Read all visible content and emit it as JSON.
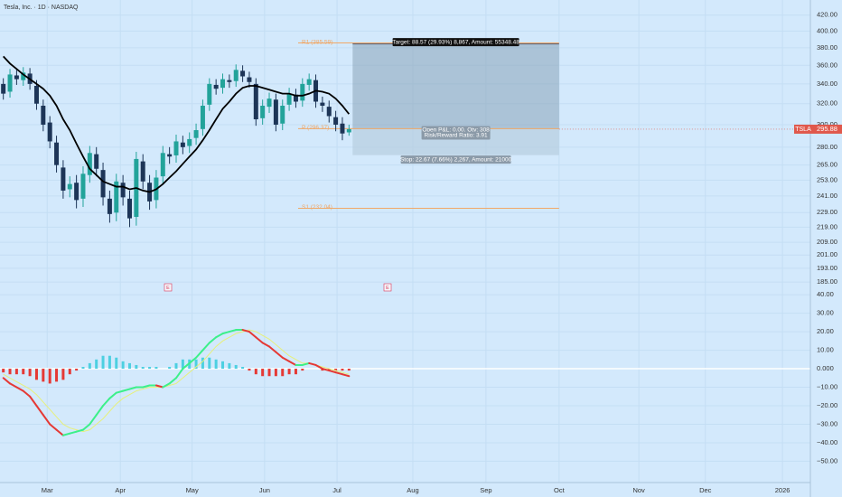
{
  "chart_data": {
    "type": "candlestick",
    "title": "Tesla, Inc. · 1D · NASDAQ",
    "symbol": "TSLA",
    "last_price": 295.88,
    "last_price_label": "295.88",
    "log_scale": true,
    "colors": {
      "up": "#22a39a",
      "down": "#1d3557",
      "ma": "#000000",
      "level": "#f0a868",
      "hist_up": "#4dd0e1",
      "hist_down": "#e53935",
      "macd_up": "#3cf08a",
      "macd_down": "#e53935",
      "signal": "#e7f07a",
      "price_tag": "#e0584c"
    },
    "xlim": [
      -0.5,
      121.4
    ],
    "xticks": [
      {
        "value": 6.6,
        "label": "Mar"
      },
      {
        "value": 17.6,
        "label": "Apr"
      },
      {
        "value": 28.4,
        "label": "May"
      },
      {
        "value": 39.3,
        "label": "Jun"
      },
      {
        "value": 50.2,
        "label": "Jul"
      },
      {
        "value": 61.6,
        "label": "Aug"
      },
      {
        "value": 72.6,
        "label": "Sep"
      },
      {
        "value": 83.6,
        "label": "Oct"
      },
      {
        "value": 95.6,
        "label": "Nov"
      },
      {
        "value": 105.6,
        "label": "Dec"
      },
      {
        "value": 117.2,
        "label": "2026"
      }
    ],
    "ylim": [
      181,
      440
    ],
    "yticks": [
      {
        "value": 420,
        "label": "420.00"
      },
      {
        "value": 400,
        "label": "400.00"
      },
      {
        "value": 380,
        "label": "380.00"
      },
      {
        "value": 360,
        "label": "360.00"
      },
      {
        "value": 340,
        "label": "340.00"
      },
      {
        "value": 320,
        "label": "320.00"
      },
      {
        "value": 300,
        "label": "300.00"
      },
      {
        "value": 280,
        "label": "280.00"
      },
      {
        "value": 265,
        "label": "265.00"
      },
      {
        "value": 253,
        "label": "253.00"
      },
      {
        "value": 241,
        "label": "241.00"
      },
      {
        "value": 229,
        "label": "229.00"
      },
      {
        "value": 219,
        "label": "219.00"
      },
      {
        "value": 209,
        "label": "209.00"
      },
      {
        "value": 201,
        "label": "201.00"
      },
      {
        "value": 193,
        "label": "193.00"
      },
      {
        "value": 185,
        "label": "185.00"
      }
    ],
    "open": [
      340,
      332,
      349,
      344,
      351,
      338,
      318,
      302,
      284,
      263,
      246,
      251,
      239,
      257,
      274,
      261,
      239,
      229,
      251,
      239,
      226,
      268,
      251,
      238,
      256,
      274,
      273,
      284,
      281,
      288,
      296,
      319,
      339,
      336,
      344,
      343,
      354,
      347,
      340,
      306,
      317,
      324,
      301,
      319,
      329,
      323,
      339,
      344,
      321,
      317,
      307,
      301,
      293
    ],
    "high": [
      346,
      356,
      355,
      358,
      357,
      344,
      324,
      308,
      290,
      269,
      256,
      257,
      264,
      281,
      280,
      267,
      245,
      258,
      257,
      245,
      276,
      274,
      257,
      261,
      281,
      280,
      291,
      290,
      293,
      301,
      324,
      346,
      345,
      351,
      350,
      361,
      360,
      353,
      346,
      324,
      331,
      330,
      324,
      336,
      335,
      346,
      351,
      350,
      327,
      323,
      313,
      307,
      300
    ],
    "low": [
      324,
      326,
      339,
      338,
      334,
      314,
      294,
      279,
      259,
      239,
      240,
      232,
      233,
      251,
      256,
      234,
      222,
      223,
      234,
      219,
      220,
      246,
      231,
      232,
      250,
      266,
      267,
      274,
      275,
      282,
      290,
      313,
      329,
      330,
      336,
      337,
      342,
      336,
      299,
      300,
      311,
      294,
      295,
      313,
      316,
      317,
      333,
      316,
      312,
      302,
      294,
      286,
      290
    ],
    "close": [
      330,
      350,
      345,
      352,
      340,
      320,
      300,
      285,
      265,
      245,
      250,
      238,
      258,
      275,
      262,
      240,
      228,
      252,
      240,
      225,
      270,
      252,
      237,
      255,
      275,
      272,
      285,
      280,
      287,
      295,
      318,
      340,
      335,
      345,
      342,
      355,
      348,
      342,
      305,
      318,
      325,
      300,
      318,
      330,
      322,
      340,
      345,
      322,
      318,
      308,
      300,
      292,
      295.88
    ],
    "ma": [
      370,
      362,
      356,
      350,
      345,
      340,
      335,
      328,
      318,
      305,
      295,
      283,
      272,
      262,
      257,
      252,
      250,
      248,
      248,
      246,
      247,
      245,
      244,
      246,
      250,
      255,
      260,
      266,
      272,
      278,
      286,
      295,
      305,
      315,
      322,
      330,
      336,
      338,
      338,
      336,
      334,
      332,
      330,
      330,
      328,
      328,
      330,
      333,
      332,
      330,
      325,
      318,
      310
    ],
    "levels": [
      {
        "label": "R1 (385.59)",
        "value": 385.59
      },
      {
        "label": "P (296.37)",
        "value": 296.37
      },
      {
        "label": "S1 (232.04)",
        "value": 232.04
      }
    ],
    "position": {
      "target_points": 88.57,
      "stop_points": 22.67,
      "target_label": "Target: 88.57 (29.93%) 8,867, Amount: 55348.48",
      "pnl_label": "Open P&L: 0.00, Qty: 308",
      "ratio_label": "Risk/Reward Ratio: 3.91",
      "stop_label": "Stop: 22.67 (7.66%) 2,267, Amount: 21000"
    },
    "events": [
      "E",
      "E"
    ],
    "oscillator": {
      "ylim": [
        -62,
        43
      ],
      "yticks": [
        {
          "value": 40,
          "label": "40.00"
        },
        {
          "value": 30,
          "label": "30.00"
        },
        {
          "value": 20,
          "label": "20.00"
        },
        {
          "value": 10,
          "label": "10.00"
        },
        {
          "value": 0,
          "label": "0.000"
        },
        {
          "value": -10,
          "label": "−10.00"
        },
        {
          "value": -20,
          "label": "−20.00"
        },
        {
          "value": -30,
          "label": "−30.00"
        },
        {
          "value": -40,
          "label": "−40.00"
        },
        {
          "value": -50,
          "label": "−50.00"
        }
      ],
      "histogram": [
        -2,
        -3,
        -3,
        -3,
        -4,
        -6,
        -7,
        -8,
        -7,
        -6,
        -3,
        -1,
        1,
        3,
        5,
        7,
        7,
        6,
        4,
        3,
        2,
        1,
        1,
        1,
        0,
        1,
        3,
        5,
        5,
        5,
        6,
        6,
        5,
        4,
        3,
        2,
        1,
        -1,
        -3,
        -4,
        -4,
        -4,
        -4,
        -3,
        -3,
        -1,
        0,
        0,
        -1,
        -1,
        -1,
        -1,
        -1
      ],
      "macd": [
        -5,
        -8,
        -10,
        -12,
        -15,
        -20,
        -25,
        -30,
        -33,
        -36,
        -35,
        -34,
        -33,
        -30,
        -25,
        -20,
        -16,
        -13,
        -12,
        -11,
        -10,
        -10,
        -9,
        -9,
        -10,
        -8,
        -5,
        0,
        3,
        6,
        10,
        14,
        17,
        19,
        20,
        21,
        21,
        20,
        17,
        14,
        12,
        9,
        6,
        4,
        2,
        2,
        3,
        2,
        0,
        -1,
        -2,
        -3,
        -4
      ],
      "signal": [
        -3,
        -5,
        -7,
        -9,
        -11,
        -14,
        -18,
        -22,
        -26,
        -30,
        -32,
        -33,
        -34,
        -33,
        -30,
        -27,
        -23,
        -19,
        -16,
        -14,
        -12,
        -11,
        -10,
        -10,
        -10,
        -9,
        -8,
        -5,
        -2,
        1,
        4,
        8,
        12,
        15,
        17,
        19,
        20,
        21,
        20,
        18,
        16,
        13,
        10,
        7,
        5,
        3,
        3,
        2,
        1,
        0,
        -1,
        -2,
        -3
      ]
    }
  }
}
